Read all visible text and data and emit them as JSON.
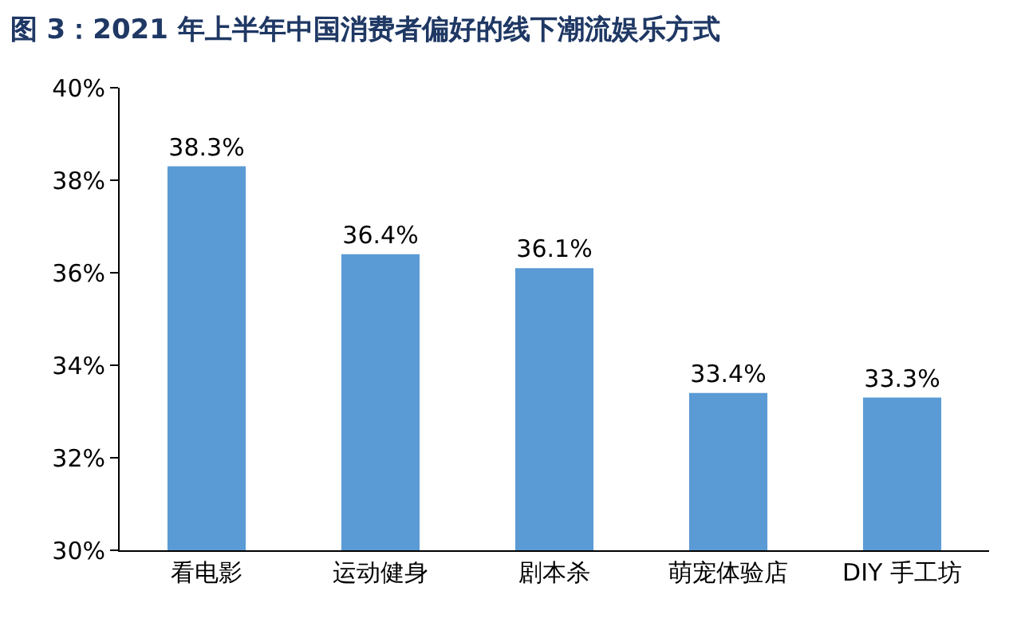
{
  "chart_data": {
    "type": "bar",
    "title": "图 3：2021 年上半年中国消费者偏好的线下潮流娱乐方式",
    "categories": [
      "看电影",
      "运动健身",
      "剧本杀",
      "萌宠体验店",
      "DIY 手工坊"
    ],
    "values": [
      38.3,
      36.4,
      36.1,
      33.4,
      33.3
    ],
    "value_labels": [
      "38.3%",
      "36.4%",
      "36.1%",
      "33.4%",
      "33.3%"
    ],
    "color": "#5b9bd5",
    "ylim": [
      30,
      40
    ],
    "yticks": [
      {
        "value": 30,
        "label": "30%"
      },
      {
        "value": 32,
        "label": "32%"
      },
      {
        "value": 34,
        "label": "34%"
      },
      {
        "value": 36,
        "label": "36%"
      },
      {
        "value": 38,
        "label": "38%"
      },
      {
        "value": 40,
        "label": "40%"
      }
    ],
    "grid": false,
    "legend": false
  }
}
